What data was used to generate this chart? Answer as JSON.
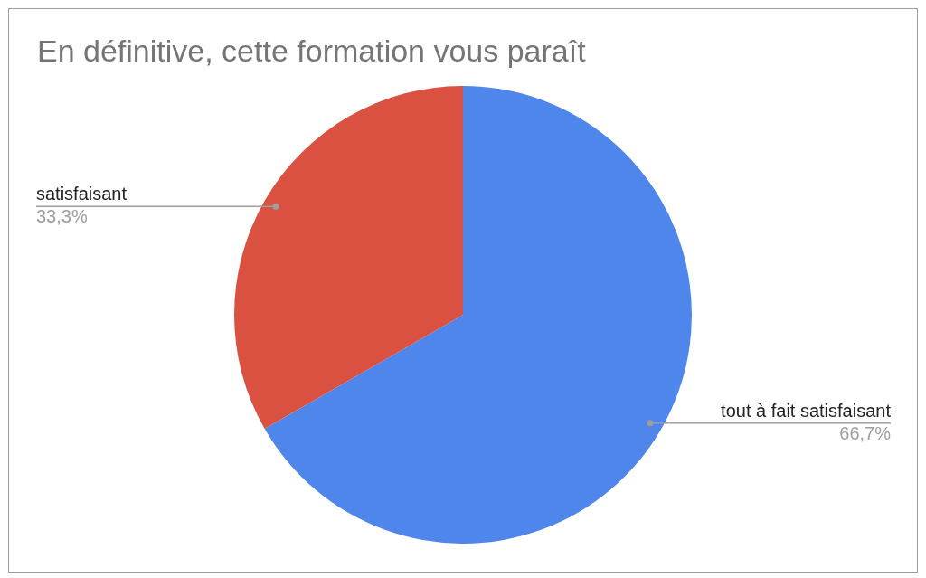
{
  "chart_data": {
    "type": "pie",
    "title": "En définitive, cette formation vous paraît",
    "categories": [
      "tout à fait satisfaisant",
      "satisfaisant"
    ],
    "values": [
      66.7,
      33.3
    ],
    "colors": [
      "#4e86ec",
      "#da5142"
    ],
    "value_labels": [
      "66,7%",
      "33,3%"
    ]
  }
}
